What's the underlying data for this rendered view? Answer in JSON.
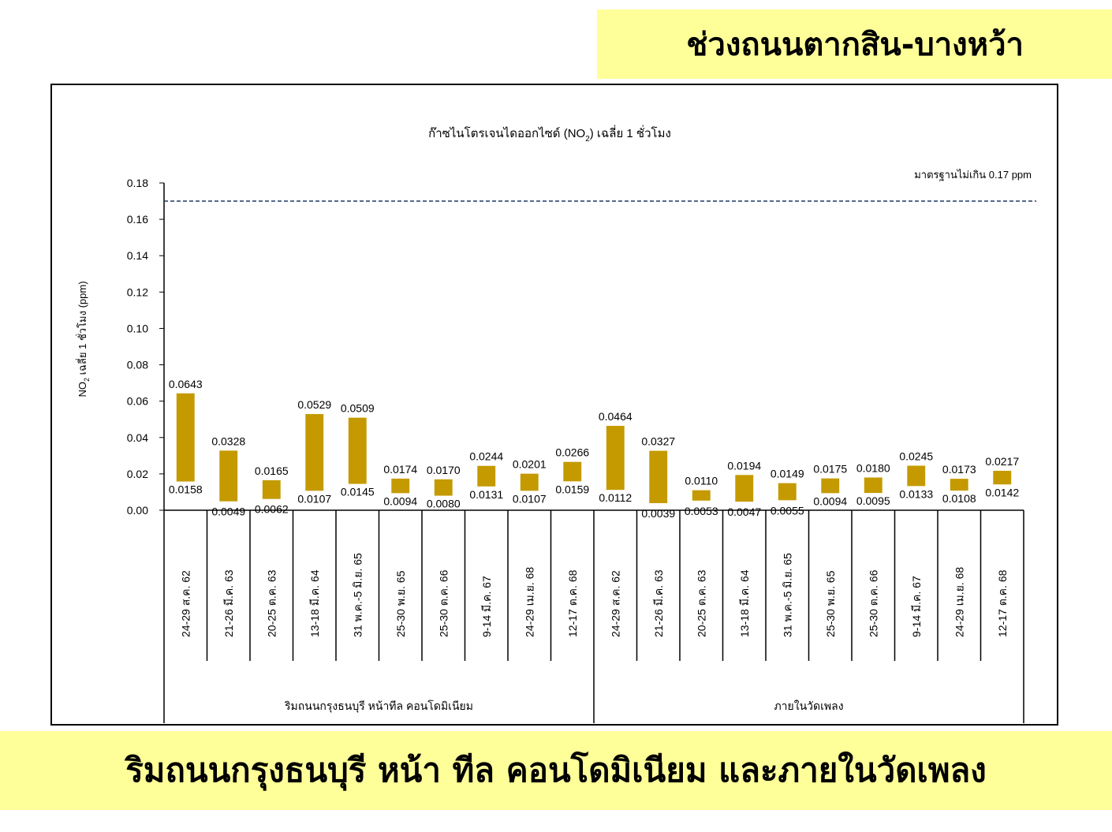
{
  "header": {
    "top_banner": "ช่วงถนนตากสิน-บางหว้า",
    "bottom_banner": "ริมถนนกรุงธนบุรี หน้า ทีล คอนโดมิเนียม และภายในวัดเพลง"
  },
  "chart_data": {
    "type": "bar",
    "subtype": "floating-range",
    "title_main": "ก๊าซไนโตรเจนไดออกไซด์ (NO",
    "title_sub": "2",
    "title_tail": ") เฉลี่ย 1 ชั่วโมง",
    "ylabel_main": "NO",
    "ylabel_sub": "2",
    "ylabel_tail": " เฉลี่ย 1 ชั่วโมง (ppm)",
    "ylim": [
      0,
      0.18
    ],
    "yticks": [
      "0.00",
      "0.02",
      "0.04",
      "0.06",
      "0.08",
      "0.10",
      "0.12",
      "0.14",
      "0.16",
      "0.18"
    ],
    "standard_value": 0.17,
    "standard_label": "มาตรฐานไม่เกิน 0.17 ppm",
    "bar_color": "#c49a00",
    "standard_line_color": "#1f3864",
    "categories": [
      "24-29 ส.ค. 62",
      "21-26 มี.ค. 63",
      "20-25 ต.ค. 63",
      "13-18 มี.ค. 64",
      "31 พ.ค.-5 มิ.ย. 65",
      "25-30 พ.ย. 65",
      "25-30 ต.ค. 66",
      "9-14 มี.ค. 67",
      "24-29 เม.ย. 68",
      "12-17 ต.ค. 68",
      "24-29 ส.ค. 62",
      "21-26 มี.ค. 63",
      "20-25 ต.ค. 63",
      "13-18 มี.ค. 64",
      "31 พ.ค.-5 มิ.ย. 65",
      "25-30 พ.ย. 65",
      "25-30 ต.ค. 66",
      "9-14 มี.ค. 67",
      "24-29 เม.ย. 68",
      "12-17 ต.ค. 68"
    ],
    "groups": [
      {
        "label": "ริมถนนกรุงธนบุรี หน้าทีล คอนโดมิเนียม",
        "count": 10
      },
      {
        "label": "ภายในวัดเพลง",
        "count": 10
      }
    ],
    "max_values": [
      0.0643,
      0.0328,
      0.0165,
      0.0529,
      0.0509,
      0.0174,
      0.017,
      0.0244,
      0.0201,
      0.0266,
      0.0464,
      0.0327,
      0.011,
      0.0194,
      0.0149,
      0.0175,
      0.018,
      0.0245,
      0.0173,
      0.0217
    ],
    "min_values": [
      0.0158,
      0.0049,
      0.0062,
      0.0107,
      0.0145,
      0.0094,
      0.008,
      0.0131,
      0.0107,
      0.0159,
      0.0112,
      0.0039,
      0.0053,
      0.0047,
      0.0055,
      0.0094,
      0.0095,
      0.0133,
      0.0108,
      0.0142
    ],
    "max_labels": [
      "0.0643",
      "0.0328",
      "0.0165",
      "0.0529",
      "0.0509",
      "0.0174",
      "0.0170",
      "0.0244",
      "0.0201",
      "0.0266",
      "0.0464",
      "0.0327",
      "0.0110",
      "0.0194",
      "0.0149",
      "0.0175",
      "0.0180",
      "0.0245",
      "0.0173",
      "0.0217"
    ],
    "min_labels": [
      "0.0158",
      "0.0049",
      "0.0062",
      "0.0107",
      "0.0145",
      "0.0094",
      "0.0080",
      "0.0131",
      "0.0107",
      "0.0159",
      "0.0112",
      "0.0039",
      "0.0053",
      "0.0047",
      "0.0055",
      "0.0094",
      "0.0095",
      "0.0133",
      "0.0108",
      "0.0142"
    ]
  }
}
